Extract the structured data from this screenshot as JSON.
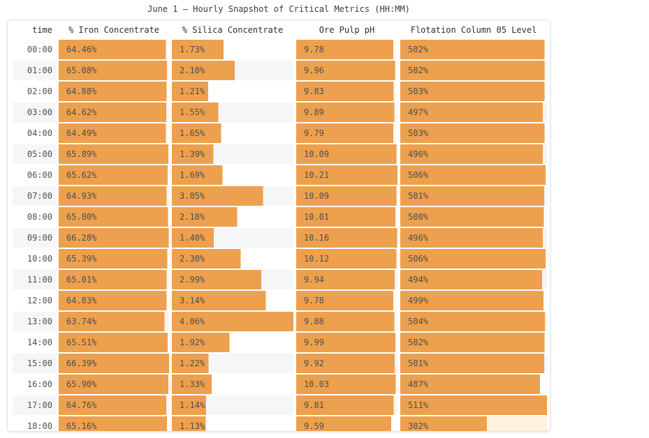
{
  "title": "June 1 – Hourly Snapshot of Critical Metrics (HH:MM)",
  "colors": {
    "bar": "#eda04d",
    "highlight": "#fdf3dc",
    "row_stripe": "#f5f6f8"
  },
  "table": {
    "columns": [
      "time",
      "% Iron Concentrate",
      "% Silica Concentrate",
      "Ore Pulp pH",
      "Flotation Column 05 Level"
    ],
    "highlight": {
      "time": "18:00",
      "key": "level"
    },
    "rows": [
      {
        "time": "00:00",
        "iron": "64.46%",
        "silica": "1.73%",
        "ph": "9.78",
        "level": "502%"
      },
      {
        "time": "01:00",
        "iron": "65.08%",
        "silica": "2.10%",
        "ph": "9.96",
        "level": "502%"
      },
      {
        "time": "02:00",
        "iron": "64.88%",
        "silica": "1.21%",
        "ph": "9.83",
        "level": "503%"
      },
      {
        "time": "03:00",
        "iron": "64.62%",
        "silica": "1.55%",
        "ph": "9.89",
        "level": "497%"
      },
      {
        "time": "04:00",
        "iron": "64.49%",
        "silica": "1.65%",
        "ph": "9.79",
        "level": "503%"
      },
      {
        "time": "05:00",
        "iron": "65.89%",
        "silica": "1.39%",
        "ph": "10.09",
        "level": "496%"
      },
      {
        "time": "06:00",
        "iron": "65.62%",
        "silica": "1.69%",
        "ph": "10.21",
        "level": "506%"
      },
      {
        "time": "07:00",
        "iron": "64.93%",
        "silica": "3.05%",
        "ph": "10.09",
        "level": "501%"
      },
      {
        "time": "08:00",
        "iron": "65.80%",
        "silica": "2.18%",
        "ph": "10.01",
        "level": "500%"
      },
      {
        "time": "09:00",
        "iron": "66.28%",
        "silica": "1.40%",
        "ph": "10.16",
        "level": "496%"
      },
      {
        "time": "10:00",
        "iron": "65.39%",
        "silica": "2.30%",
        "ph": "10.12",
        "level": "506%"
      },
      {
        "time": "11:00",
        "iron": "65.01%",
        "silica": "2.99%",
        "ph": "9.94",
        "level": "494%"
      },
      {
        "time": "12:00",
        "iron": "64.83%",
        "silica": "3.14%",
        "ph": "9.78",
        "level": "499%"
      },
      {
        "time": "13:00",
        "iron": "63.74%",
        "silica": "4.06%",
        "ph": "9.88",
        "level": "504%"
      },
      {
        "time": "14:00",
        "iron": "65.51%",
        "silica": "1.92%",
        "ph": "9.99",
        "level": "502%"
      },
      {
        "time": "15:00",
        "iron": "66.39%",
        "silica": "1.22%",
        "ph": "9.92",
        "level": "501%"
      },
      {
        "time": "16:00",
        "iron": "65.90%",
        "silica": "1.33%",
        "ph": "10.03",
        "level": "487%"
      },
      {
        "time": "17:00",
        "iron": "64.76%",
        "silica": "1.14%",
        "ph": "9.81",
        "level": "511%"
      },
      {
        "time": "18:00",
        "iron": "65.16%",
        "silica": "1.13%",
        "ph": "9.59",
        "level": "302%"
      }
    ]
  },
  "chart_data": {
    "type": "table",
    "title": "June 1 – Hourly Snapshot of Critical Metrics (HH:MM)",
    "categories": [
      "00:00",
      "01:00",
      "02:00",
      "03:00",
      "04:00",
      "05:00",
      "06:00",
      "07:00",
      "08:00",
      "09:00",
      "10:00",
      "11:00",
      "12:00",
      "13:00",
      "14:00",
      "15:00",
      "16:00",
      "17:00",
      "18:00"
    ],
    "series": [
      {
        "name": "% Iron Concentrate",
        "values": [
          64.46,
          65.08,
          64.88,
          64.62,
          64.49,
          65.89,
          65.62,
          64.93,
          65.8,
          66.28,
          65.39,
          65.01,
          64.83,
          63.74,
          65.51,
          66.39,
          65.9,
          64.76,
          65.16
        ]
      },
      {
        "name": "% Silica Concentrate",
        "values": [
          1.73,
          2.1,
          1.21,
          1.55,
          1.65,
          1.39,
          1.69,
          3.05,
          2.18,
          1.4,
          2.3,
          2.99,
          3.14,
          4.06,
          1.92,
          1.22,
          1.33,
          1.14,
          1.13
        ]
      },
      {
        "name": "Ore Pulp pH",
        "values": [
          9.78,
          9.96,
          9.83,
          9.89,
          9.79,
          10.09,
          10.21,
          10.09,
          10.01,
          10.16,
          10.12,
          9.94,
          9.78,
          9.88,
          9.99,
          9.92,
          10.03,
          9.81,
          9.59
        ]
      },
      {
        "name": "Flotation Column 05 Level",
        "values": [
          502,
          502,
          503,
          497,
          503,
          496,
          506,
          501,
          500,
          496,
          506,
          494,
          499,
          504,
          502,
          501,
          487,
          511,
          302
        ]
      }
    ],
    "layout_hints": {
      "bar_scaling": "in-cell horizontal bar, width = value / column max",
      "row_stripes": true,
      "highlighted_cell": {
        "row": "18:00",
        "column": "Flotation Column 05 Level"
      }
    }
  }
}
